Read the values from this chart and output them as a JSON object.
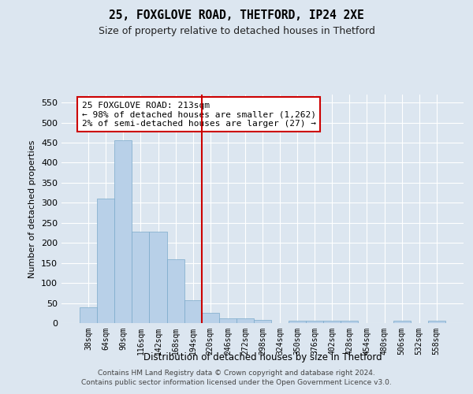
{
  "title": "25, FOXGLOVE ROAD, THETFORD, IP24 2XE",
  "subtitle": "Size of property relative to detached houses in Thetford",
  "xlabel": "Distribution of detached houses by size in Thetford",
  "ylabel": "Number of detached properties",
  "categories": [
    "38sqm",
    "64sqm",
    "90sqm",
    "116sqm",
    "142sqm",
    "168sqm",
    "194sqm",
    "220sqm",
    "246sqm",
    "272sqm",
    "298sqm",
    "324sqm",
    "350sqm",
    "376sqm",
    "402sqm",
    "428sqm",
    "454sqm",
    "480sqm",
    "506sqm",
    "532sqm",
    "558sqm"
  ],
  "values": [
    40,
    311,
    456,
    228,
    228,
    159,
    57,
    25,
    12,
    11,
    8,
    0,
    5,
    5,
    5,
    5,
    0,
    0,
    5,
    0,
    5
  ],
  "bar_color": "#b8d0e8",
  "bar_edge_color": "#7aaaca",
  "annotation_text": "25 FOXGLOVE ROAD: 213sqm\n← 98% of detached houses are smaller (1,262)\n2% of semi-detached houses are larger (27) →",
  "annotation_box_facecolor": "#ffffff",
  "annotation_box_edgecolor": "#cc0000",
  "redline_x": 6.5,
  "footer": "Contains HM Land Registry data © Crown copyright and database right 2024.\nContains public sector information licensed under the Open Government Licence v3.0.",
  "bg_color": "#dce6f0",
  "plot_bg_color": "#dce6f0",
  "grid_color": "#ffffff",
  "ylim": [
    0,
    570
  ],
  "yticks": [
    0,
    50,
    100,
    150,
    200,
    250,
    300,
    350,
    400,
    450,
    500,
    550
  ]
}
